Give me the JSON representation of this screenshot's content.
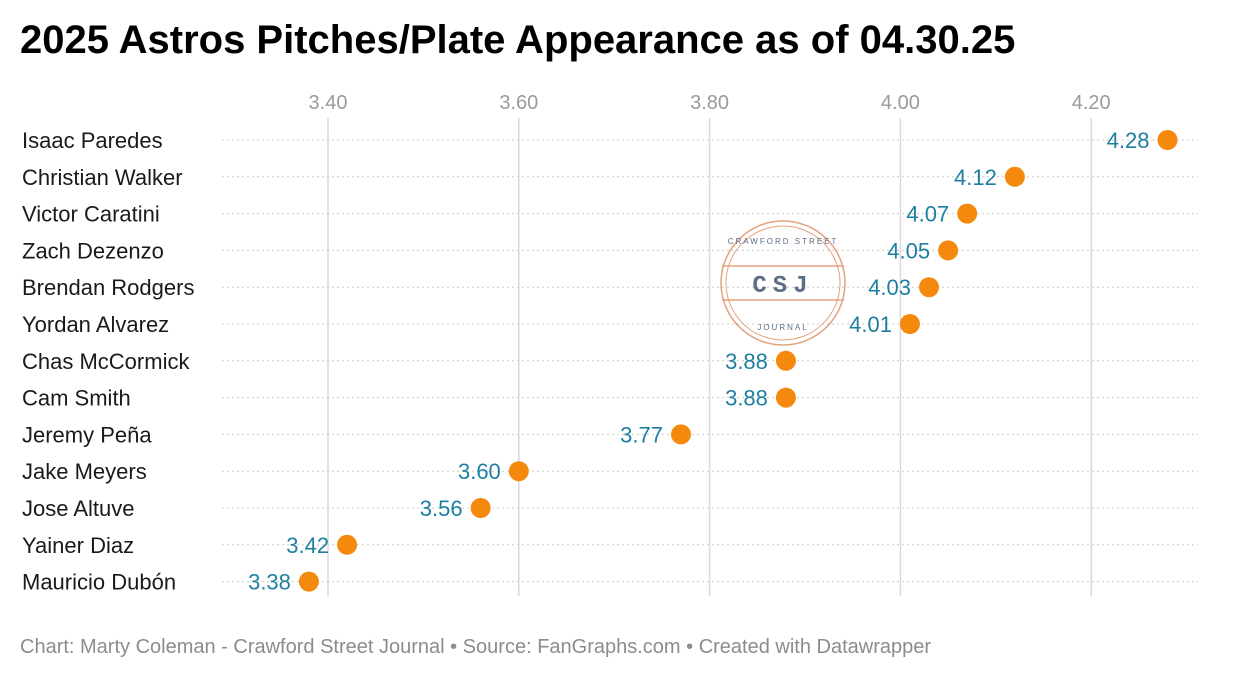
{
  "chart_data": {
    "type": "scatter",
    "title": "2025 Astros Pitches/Plate Appearance as of 04.30.25",
    "xlabel": "",
    "ylabel": "",
    "xlim": [
      3.3,
      4.3
    ],
    "xticks": [
      3.4,
      3.6,
      3.8,
      4.0,
      4.2
    ],
    "xtick_labels": [
      "3.40",
      "3.60",
      "3.80",
      "4.00",
      "4.20"
    ],
    "grid": true,
    "legend": "none",
    "categories": [
      "Isaac Paredes",
      "Christian Walker",
      "Victor Caratini",
      "Zach Dezenzo",
      "Brendan Rodgers",
      "Yordan Alvarez",
      "Chas McCormick",
      "Cam Smith",
      "Jeremy Peña",
      "Jake Meyers",
      "Jose Altuve",
      "Yainer Diaz",
      "Mauricio Dubón"
    ],
    "values": [
      4.28,
      4.12,
      4.07,
      4.05,
      4.03,
      4.01,
      3.88,
      3.88,
      3.77,
      3.6,
      3.56,
      3.42,
      3.38
    ],
    "value_labels": [
      "4.28",
      "4.12",
      "4.07",
      "4.05",
      "4.03",
      "4.01",
      "3.88",
      "3.88",
      "3.77",
      "3.60",
      "3.56",
      "3.42",
      "3.38"
    ],
    "footer": "Chart: Marty Coleman - Crawford Street Journal • Source: FanGraphs.com • Created with Datawrapper"
  },
  "watermark": {
    "initials": "CSJ",
    "top_text": "CRAWFORD STREET",
    "bottom_text": "JOURNAL"
  },
  "colors": {
    "dot": "#f5890e",
    "value_label": "#1d7fa0",
    "gridline": "#d9d9d9",
    "watermark": "#e4a27f",
    "watermark_text": "#5c6e85"
  }
}
